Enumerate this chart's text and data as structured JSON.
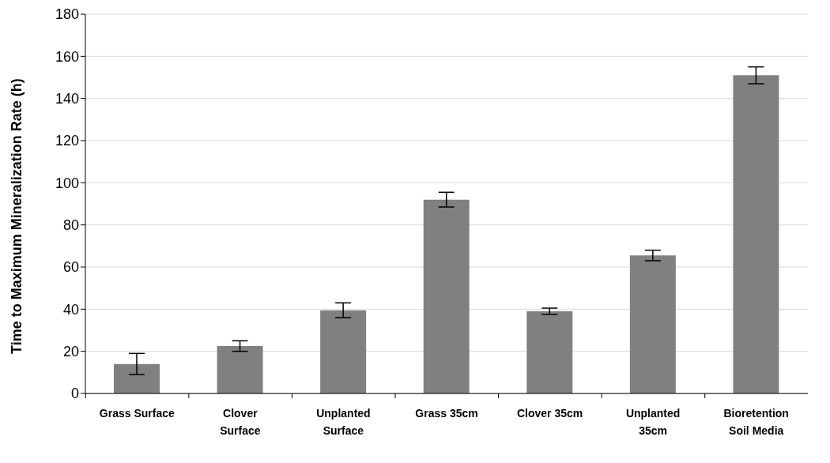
{
  "chart_data": {
    "type": "bar",
    "ylabel": "Time to Maximum Mineralization Rate (h)",
    "categories": [
      "Grass Surface",
      "Clover Surface",
      "Unplanted Surface",
      "Grass 35cm",
      "Clover 35cm",
      "Unplanted 35cm",
      "Bioretention Soil Media"
    ],
    "values": [
      14,
      22.5,
      39.5,
      92,
      39,
      65.5,
      151
    ],
    "errors": [
      5,
      2.5,
      3.5,
      3.5,
      1.5,
      2.5,
      4
    ],
    "color": "#808080",
    "ylim": [
      0,
      180
    ],
    "yticks": [
      0,
      20,
      40,
      60,
      80,
      100,
      120,
      140,
      160,
      180
    ],
    "grid": "y"
  }
}
